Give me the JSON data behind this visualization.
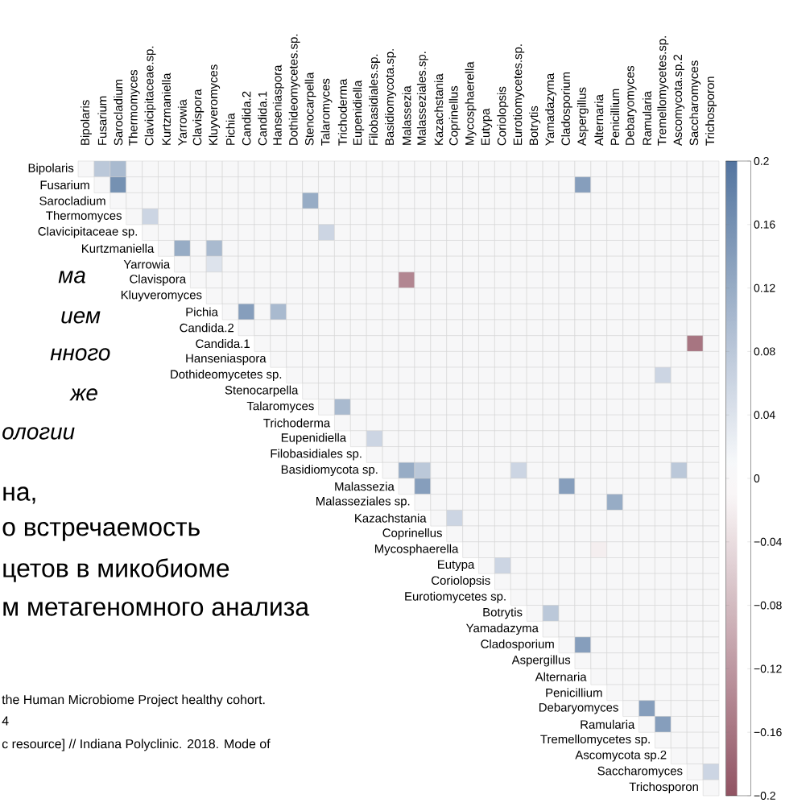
{
  "chart_data": {
    "type": "heatmap",
    "categories": [
      "Bipolaris",
      "Fusarium",
      "Sarocladium",
      "Thermomyces",
      "Clavicipitaceae.sp.",
      "Kurtzmaniella",
      "Yarrowia",
      "Clavispora",
      "Kluyveromyces",
      "Pichia",
      "Candida.2",
      "Candida.1",
      "Hanseniaspora",
      "Dothideomycetes.sp.",
      "Stenocarpella",
      "Talaromyces",
      "Trichoderma",
      "Eupenidiella",
      "Filobasidiales.sp.",
      "Basidiomycota.sp.",
      "Malassezia",
      "Malasseziales.sp.",
      "Kazachstania",
      "Coprinellus",
      "Mycosphaerella",
      "Eutypa",
      "Coriolopsis",
      "Eurotiomycetes.sp.",
      "Botrytis",
      "Yamadazyma",
      "Cladosporium",
      "Aspergillus",
      "Alternaria",
      "Penicillium",
      "Debaryomyces",
      "Ramularia",
      "Tremellomycetes.sp.",
      "Ascomycota.sp.2",
      "Saccharomyces",
      "Trichosporon"
    ],
    "y_categories": [
      "Bipolaris",
      "Fusarium",
      "Sarocladium",
      "Thermomyces",
      "Clavicipitaceae sp.",
      "Kurtzmaniella",
      "Yarrowia",
      "Clavispora",
      "Kluyveromyces",
      "Pichia",
      "Candida.2",
      "Candida.1",
      "Hanseniaspora",
      "Dothideomycetes sp.",
      "Stenocarpella",
      "Talaromyces",
      "Trichoderma",
      "Eupenidiella",
      "Filobasidiales sp.",
      "Basidiomycota sp.",
      "Malassezia",
      "Malasseziales sp.",
      "Kazachstania",
      "Coprinellus",
      "Mycosphaerella",
      "Eutypa",
      "Coriolopsis",
      "Eurotiomycetes sp.",
      "Botrytis",
      "Yamadazyma",
      "Cladosporium",
      "Aspergillus",
      "Alternaria",
      "Penicillium",
      "Debaryomyces",
      "Ramularia",
      "Tremellomycetes sp.",
      "Ascomycota sp.2",
      "Saccharomyces",
      "Trichosporon"
    ],
    "cells": [
      [
        0,
        0.08,
        0.1,
        0,
        0,
        0,
        0,
        0,
        0,
        0,
        0,
        0,
        0,
        0,
        0,
        0,
        0,
        0,
        0,
        0,
        0,
        0,
        0,
        0,
        0,
        0,
        0,
        0,
        0,
        0,
        0,
        0,
        0,
        0,
        0,
        0,
        0,
        0,
        0,
        0
      ],
      [
        null,
        0,
        0.16,
        0,
        0,
        0,
        0,
        0,
        0,
        0,
        0,
        0,
        0,
        0,
        0,
        0,
        0,
        0,
        0,
        0,
        0,
        0,
        0,
        0,
        0,
        0,
        0,
        0,
        0,
        0,
        0,
        0.14,
        0,
        0,
        0,
        0,
        0,
        0,
        0,
        0
      ],
      [
        null,
        null,
        0,
        0,
        0,
        0,
        0,
        0,
        0,
        0,
        0,
        0,
        0,
        0,
        0.12,
        0,
        0,
        0,
        0,
        0,
        0,
        0,
        0,
        0,
        0,
        0,
        0,
        0,
        0,
        0,
        0,
        0,
        0,
        0,
        0,
        0,
        0,
        0,
        0,
        0
      ],
      [
        null,
        null,
        null,
        0,
        0.06,
        0,
        0,
        0,
        0,
        0,
        0,
        0,
        0,
        0,
        0,
        0,
        0,
        0,
        0,
        0,
        0,
        0,
        0,
        0,
        0,
        0,
        0,
        0,
        0,
        0,
        0,
        0,
        0,
        0,
        0,
        0,
        0,
        0,
        0,
        0
      ],
      [
        null,
        null,
        null,
        null,
        0,
        0,
        0,
        0,
        0,
        0,
        0,
        0,
        0,
        0,
        0,
        0.06,
        0,
        0,
        0,
        0,
        0,
        0,
        0,
        0,
        0,
        0,
        0,
        0,
        0,
        0,
        0,
        0,
        0,
        0,
        0,
        0,
        0,
        0,
        0,
        0
      ],
      [
        null,
        null,
        null,
        null,
        null,
        0,
        0.12,
        0,
        0.1,
        0,
        0,
        0,
        0,
        0,
        0,
        0,
        0,
        0,
        0,
        0,
        0,
        0,
        0,
        0,
        0,
        0,
        0,
        0,
        0,
        0,
        0,
        0,
        0,
        0,
        0,
        0,
        0,
        0,
        0,
        0
      ],
      [
        null,
        null,
        null,
        null,
        null,
        null,
        0,
        0,
        0.04,
        0,
        0,
        0,
        0,
        0,
        0,
        0,
        0,
        0,
        0,
        0,
        0,
        0,
        0,
        0,
        0,
        0,
        0,
        0,
        0,
        0,
        0,
        0,
        0,
        0,
        0,
        0,
        0,
        0,
        0,
        0
      ],
      [
        null,
        null,
        null,
        null,
        null,
        null,
        null,
        0,
        0,
        0,
        0,
        0,
        0,
        0,
        0,
        0,
        0,
        0,
        0,
        0,
        -0.14,
        0,
        0,
        0,
        0,
        0,
        0,
        0,
        0,
        0,
        0,
        0,
        0,
        0,
        0,
        0,
        0,
        0,
        0,
        0
      ],
      [
        null,
        null,
        null,
        null,
        null,
        null,
        null,
        null,
        0,
        0,
        0,
        0,
        0,
        0,
        0,
        0,
        0,
        0,
        0,
        0,
        0,
        0,
        0,
        0,
        0,
        0,
        0,
        0,
        0,
        0,
        0,
        0,
        0,
        0,
        0,
        0,
        0,
        0,
        0,
        0
      ],
      [
        null,
        null,
        null,
        null,
        null,
        null,
        null,
        null,
        null,
        0,
        0.14,
        0,
        0.1,
        0,
        0,
        0,
        0,
        0,
        0,
        0,
        0,
        0,
        0,
        0,
        0,
        0,
        0,
        0,
        0,
        0,
        0,
        0,
        0,
        0,
        0,
        0,
        0,
        0,
        0,
        0
      ],
      [
        null,
        null,
        null,
        null,
        null,
        null,
        null,
        null,
        null,
        null,
        0,
        0,
        0,
        0,
        0,
        0,
        0,
        0,
        0,
        0,
        0,
        0,
        0,
        0,
        0,
        0,
        0,
        0,
        0,
        0,
        0,
        0,
        0,
        0,
        0,
        0,
        0,
        0,
        0,
        0
      ],
      [
        null,
        null,
        null,
        null,
        null,
        null,
        null,
        null,
        null,
        null,
        null,
        0,
        0,
        0,
        0,
        0,
        0,
        0,
        0,
        0,
        0,
        0,
        0,
        0,
        0,
        0,
        0,
        0,
        0,
        0,
        0,
        0,
        0,
        0,
        0,
        0,
        0,
        0,
        -0.16,
        0
      ],
      [
        null,
        null,
        null,
        null,
        null,
        null,
        null,
        null,
        null,
        null,
        null,
        null,
        0,
        0,
        0,
        0,
        0,
        0,
        0,
        0,
        0,
        0,
        0,
        0,
        0,
        0,
        0,
        0,
        0,
        0,
        0,
        0,
        0,
        0,
        0,
        0,
        0,
        0,
        0,
        0
      ],
      [
        null,
        null,
        null,
        null,
        null,
        null,
        null,
        null,
        null,
        null,
        null,
        null,
        null,
        0,
        0,
        0,
        0,
        0,
        0,
        0,
        0,
        0,
        0,
        0,
        0,
        0,
        0,
        0,
        0,
        0,
        0,
        0,
        0,
        0,
        0,
        0,
        0.06,
        0,
        0,
        0
      ],
      [
        null,
        null,
        null,
        null,
        null,
        null,
        null,
        null,
        null,
        null,
        null,
        null,
        null,
        null,
        0,
        0,
        0,
        0,
        0,
        0,
        0,
        0,
        0,
        0,
        0,
        0,
        0,
        0,
        0,
        0,
        0,
        0,
        0,
        0,
        0,
        0,
        0,
        0,
        0,
        0
      ],
      [
        null,
        null,
        null,
        null,
        null,
        null,
        null,
        null,
        null,
        null,
        null,
        null,
        null,
        null,
        null,
        0,
        0.1,
        0,
        0,
        0,
        0,
        0,
        0,
        0,
        0,
        0,
        0,
        0,
        0,
        0,
        0,
        0,
        0,
        0,
        0,
        0,
        0,
        0,
        0,
        0
      ],
      [
        null,
        null,
        null,
        null,
        null,
        null,
        null,
        null,
        null,
        null,
        null,
        null,
        null,
        null,
        null,
        null,
        0,
        0,
        0,
        0,
        0,
        0,
        0,
        0,
        0,
        0,
        0,
        0,
        0,
        0,
        0,
        0,
        0,
        0,
        0,
        0,
        0,
        0,
        0,
        0
      ],
      [
        null,
        null,
        null,
        null,
        null,
        null,
        null,
        null,
        null,
        null,
        null,
        null,
        null,
        null,
        null,
        null,
        null,
        0,
        0.06,
        0,
        0,
        0,
        0,
        0,
        0,
        0,
        0,
        0,
        0,
        0,
        0,
        0,
        0,
        0,
        0,
        0,
        0,
        0,
        0,
        0
      ],
      [
        null,
        null,
        null,
        null,
        null,
        null,
        null,
        null,
        null,
        null,
        null,
        null,
        null,
        null,
        null,
        null,
        null,
        null,
        0,
        0,
        0,
        0,
        0,
        0,
        0,
        0,
        0,
        0,
        0,
        0,
        0,
        0,
        0,
        0,
        0,
        0,
        0,
        0,
        0,
        0
      ],
      [
        null,
        null,
        null,
        null,
        null,
        null,
        null,
        null,
        null,
        null,
        null,
        null,
        null,
        null,
        null,
        null,
        null,
        null,
        null,
        0,
        0.12,
        0.08,
        0,
        0,
        0,
        0,
        0,
        0.06,
        0,
        0,
        0,
        0,
        0,
        0,
        0,
        0,
        0,
        0.08,
        0,
        0
      ],
      [
        null,
        null,
        null,
        null,
        null,
        null,
        null,
        null,
        null,
        null,
        null,
        null,
        null,
        null,
        null,
        null,
        null,
        null,
        null,
        null,
        0,
        0.14,
        0,
        0,
        0,
        0,
        0,
        0,
        0,
        0,
        0.14,
        0,
        0,
        0,
        0,
        0,
        0,
        0,
        0,
        0
      ],
      [
        null,
        null,
        null,
        null,
        null,
        null,
        null,
        null,
        null,
        null,
        null,
        null,
        null,
        null,
        null,
        null,
        null,
        null,
        null,
        null,
        null,
        0,
        0,
        0,
        0,
        0,
        0,
        0,
        0,
        0,
        0,
        0,
        0,
        0.12,
        0,
        0,
        0,
        0,
        0,
        0
      ],
      [
        null,
        null,
        null,
        null,
        null,
        null,
        null,
        null,
        null,
        null,
        null,
        null,
        null,
        null,
        null,
        null,
        null,
        null,
        null,
        null,
        null,
        null,
        0,
        0.06,
        0,
        0,
        0,
        0,
        0,
        0,
        0,
        0,
        0,
        0,
        0,
        0,
        0,
        0,
        0,
        0
      ],
      [
        null,
        null,
        null,
        null,
        null,
        null,
        null,
        null,
        null,
        null,
        null,
        null,
        null,
        null,
        null,
        null,
        null,
        null,
        null,
        null,
        null,
        null,
        null,
        0,
        0,
        0,
        0,
        0,
        0,
        0,
        0,
        0,
        0,
        0,
        0,
        0,
        0,
        0,
        0,
        0
      ],
      [
        null,
        null,
        null,
        null,
        null,
        null,
        null,
        null,
        null,
        null,
        null,
        null,
        null,
        null,
        null,
        null,
        null,
        null,
        null,
        null,
        null,
        null,
        null,
        null,
        0,
        0,
        0,
        0,
        0,
        0,
        0,
        0,
        -0.02,
        0,
        0,
        0,
        0,
        0,
        0,
        0
      ],
      [
        null,
        null,
        null,
        null,
        null,
        null,
        null,
        null,
        null,
        null,
        null,
        null,
        null,
        null,
        null,
        null,
        null,
        null,
        null,
        null,
        null,
        null,
        null,
        null,
        null,
        0,
        0.06,
        0,
        0,
        0,
        0,
        0,
        0,
        0,
        0,
        0,
        0,
        0,
        0,
        0
      ],
      [
        null,
        null,
        null,
        null,
        null,
        null,
        null,
        null,
        null,
        null,
        null,
        null,
        null,
        null,
        null,
        null,
        null,
        null,
        null,
        null,
        null,
        null,
        null,
        null,
        null,
        null,
        0,
        0,
        0,
        0,
        0,
        0,
        0,
        0,
        0,
        0,
        0,
        0,
        0,
        0
      ],
      [
        null,
        null,
        null,
        null,
        null,
        null,
        null,
        null,
        null,
        null,
        null,
        null,
        null,
        null,
        null,
        null,
        null,
        null,
        null,
        null,
        null,
        null,
        null,
        null,
        null,
        null,
        null,
        0,
        0,
        0,
        0,
        0,
        0,
        0,
        0,
        0,
        0,
        0,
        0,
        0
      ],
      [
        null,
        null,
        null,
        null,
        null,
        null,
        null,
        null,
        null,
        null,
        null,
        null,
        null,
        null,
        null,
        null,
        null,
        null,
        null,
        null,
        null,
        null,
        null,
        null,
        null,
        null,
        null,
        null,
        0,
        0.08,
        0,
        0,
        0,
        0,
        0,
        0,
        0,
        0,
        0,
        0
      ],
      [
        null,
        null,
        null,
        null,
        null,
        null,
        null,
        null,
        null,
        null,
        null,
        null,
        null,
        null,
        null,
        null,
        null,
        null,
        null,
        null,
        null,
        null,
        null,
        null,
        null,
        null,
        null,
        null,
        null,
        0,
        0,
        0,
        0,
        0,
        0,
        0,
        0,
        0,
        0,
        0
      ],
      [
        null,
        null,
        null,
        null,
        null,
        null,
        null,
        null,
        null,
        null,
        null,
        null,
        null,
        null,
        null,
        null,
        null,
        null,
        null,
        null,
        null,
        null,
        null,
        null,
        null,
        null,
        null,
        null,
        null,
        null,
        0,
        0.14,
        0,
        0,
        0,
        0,
        0,
        0,
        0,
        0
      ],
      [
        null,
        null,
        null,
        null,
        null,
        null,
        null,
        null,
        null,
        null,
        null,
        null,
        null,
        null,
        null,
        null,
        null,
        null,
        null,
        null,
        null,
        null,
        null,
        null,
        null,
        null,
        null,
        null,
        null,
        null,
        null,
        0,
        0,
        0,
        0,
        0,
        0,
        0,
        0,
        0
      ],
      [
        null,
        null,
        null,
        null,
        null,
        null,
        null,
        null,
        null,
        null,
        null,
        null,
        null,
        null,
        null,
        null,
        null,
        null,
        null,
        null,
        null,
        null,
        null,
        null,
        null,
        null,
        null,
        null,
        null,
        null,
        null,
        null,
        0,
        0,
        0,
        0,
        0,
        0,
        0,
        0
      ],
      [
        null,
        null,
        null,
        null,
        null,
        null,
        null,
        null,
        null,
        null,
        null,
        null,
        null,
        null,
        null,
        null,
        null,
        null,
        null,
        null,
        null,
        null,
        null,
        null,
        null,
        null,
        null,
        null,
        null,
        null,
        null,
        null,
        null,
        0,
        0,
        0,
        0,
        0,
        0,
        0
      ],
      [
        null,
        null,
        null,
        null,
        null,
        null,
        null,
        null,
        null,
        null,
        null,
        null,
        null,
        null,
        null,
        null,
        null,
        null,
        null,
        null,
        null,
        null,
        null,
        null,
        null,
        null,
        null,
        null,
        null,
        null,
        null,
        null,
        null,
        null,
        0,
        0.14,
        0,
        0,
        0,
        0
      ],
      [
        null,
        null,
        null,
        null,
        null,
        null,
        null,
        null,
        null,
        null,
        null,
        null,
        null,
        null,
        null,
        null,
        null,
        null,
        null,
        null,
        null,
        null,
        null,
        null,
        null,
        null,
        null,
        null,
        null,
        null,
        null,
        null,
        null,
        null,
        null,
        0,
        0.14,
        0,
        0,
        0
      ],
      [
        null,
        null,
        null,
        null,
        null,
        null,
        null,
        null,
        null,
        null,
        null,
        null,
        null,
        null,
        null,
        null,
        null,
        null,
        null,
        null,
        null,
        null,
        null,
        null,
        null,
        null,
        null,
        null,
        null,
        null,
        null,
        null,
        null,
        null,
        null,
        null,
        0,
        0,
        0,
        0
      ],
      [
        null,
        null,
        null,
        null,
        null,
        null,
        null,
        null,
        null,
        null,
        null,
        null,
        null,
        null,
        null,
        null,
        null,
        null,
        null,
        null,
        null,
        null,
        null,
        null,
        null,
        null,
        null,
        null,
        null,
        null,
        null,
        null,
        null,
        null,
        null,
        null,
        null,
        0,
        0,
        0
      ],
      [
        null,
        null,
        null,
        null,
        null,
        null,
        null,
        null,
        null,
        null,
        null,
        null,
        null,
        null,
        null,
        null,
        null,
        null,
        null,
        null,
        null,
        null,
        null,
        null,
        null,
        null,
        null,
        null,
        null,
        null,
        null,
        null,
        null,
        null,
        null,
        null,
        null,
        null,
        0,
        0.06
      ],
      [
        null,
        null,
        null,
        null,
        null,
        null,
        null,
        null,
        null,
        null,
        null,
        null,
        null,
        null,
        null,
        null,
        null,
        null,
        null,
        null,
        null,
        null,
        null,
        null,
        null,
        null,
        null,
        null,
        null,
        null,
        null,
        null,
        null,
        null,
        null,
        null,
        null,
        null,
        null,
        0
      ]
    ],
    "clim": [
      -0.2,
      0.2
    ],
    "cticks": [
      0.2,
      0.16,
      0.12,
      0.08,
      0.04,
      0,
      {
        "value": -0.04,
        "label": "−0.04"
      },
      {
        "value": -0.08,
        "label": "−0.08"
      },
      {
        "value": -0.12,
        "label": "−0.12"
      },
      {
        "value": -0.16,
        "label": "−0.16"
      },
      {
        "value": -0.2,
        "label": "−0.2"
      }
    ],
    "annotations": [
      "ма",
      "ием",
      "нного",
      "же",
      "ологии",
      "на,",
      "о встречаемость",
      "цетов в микобиоме",
      "м метагеномного анализа",
      "the Human Microbiome Project healthy cohort.",
      "4",
      "c resource] //  Indiana Polyclinic. 2018. Mode of"
    ]
  }
}
